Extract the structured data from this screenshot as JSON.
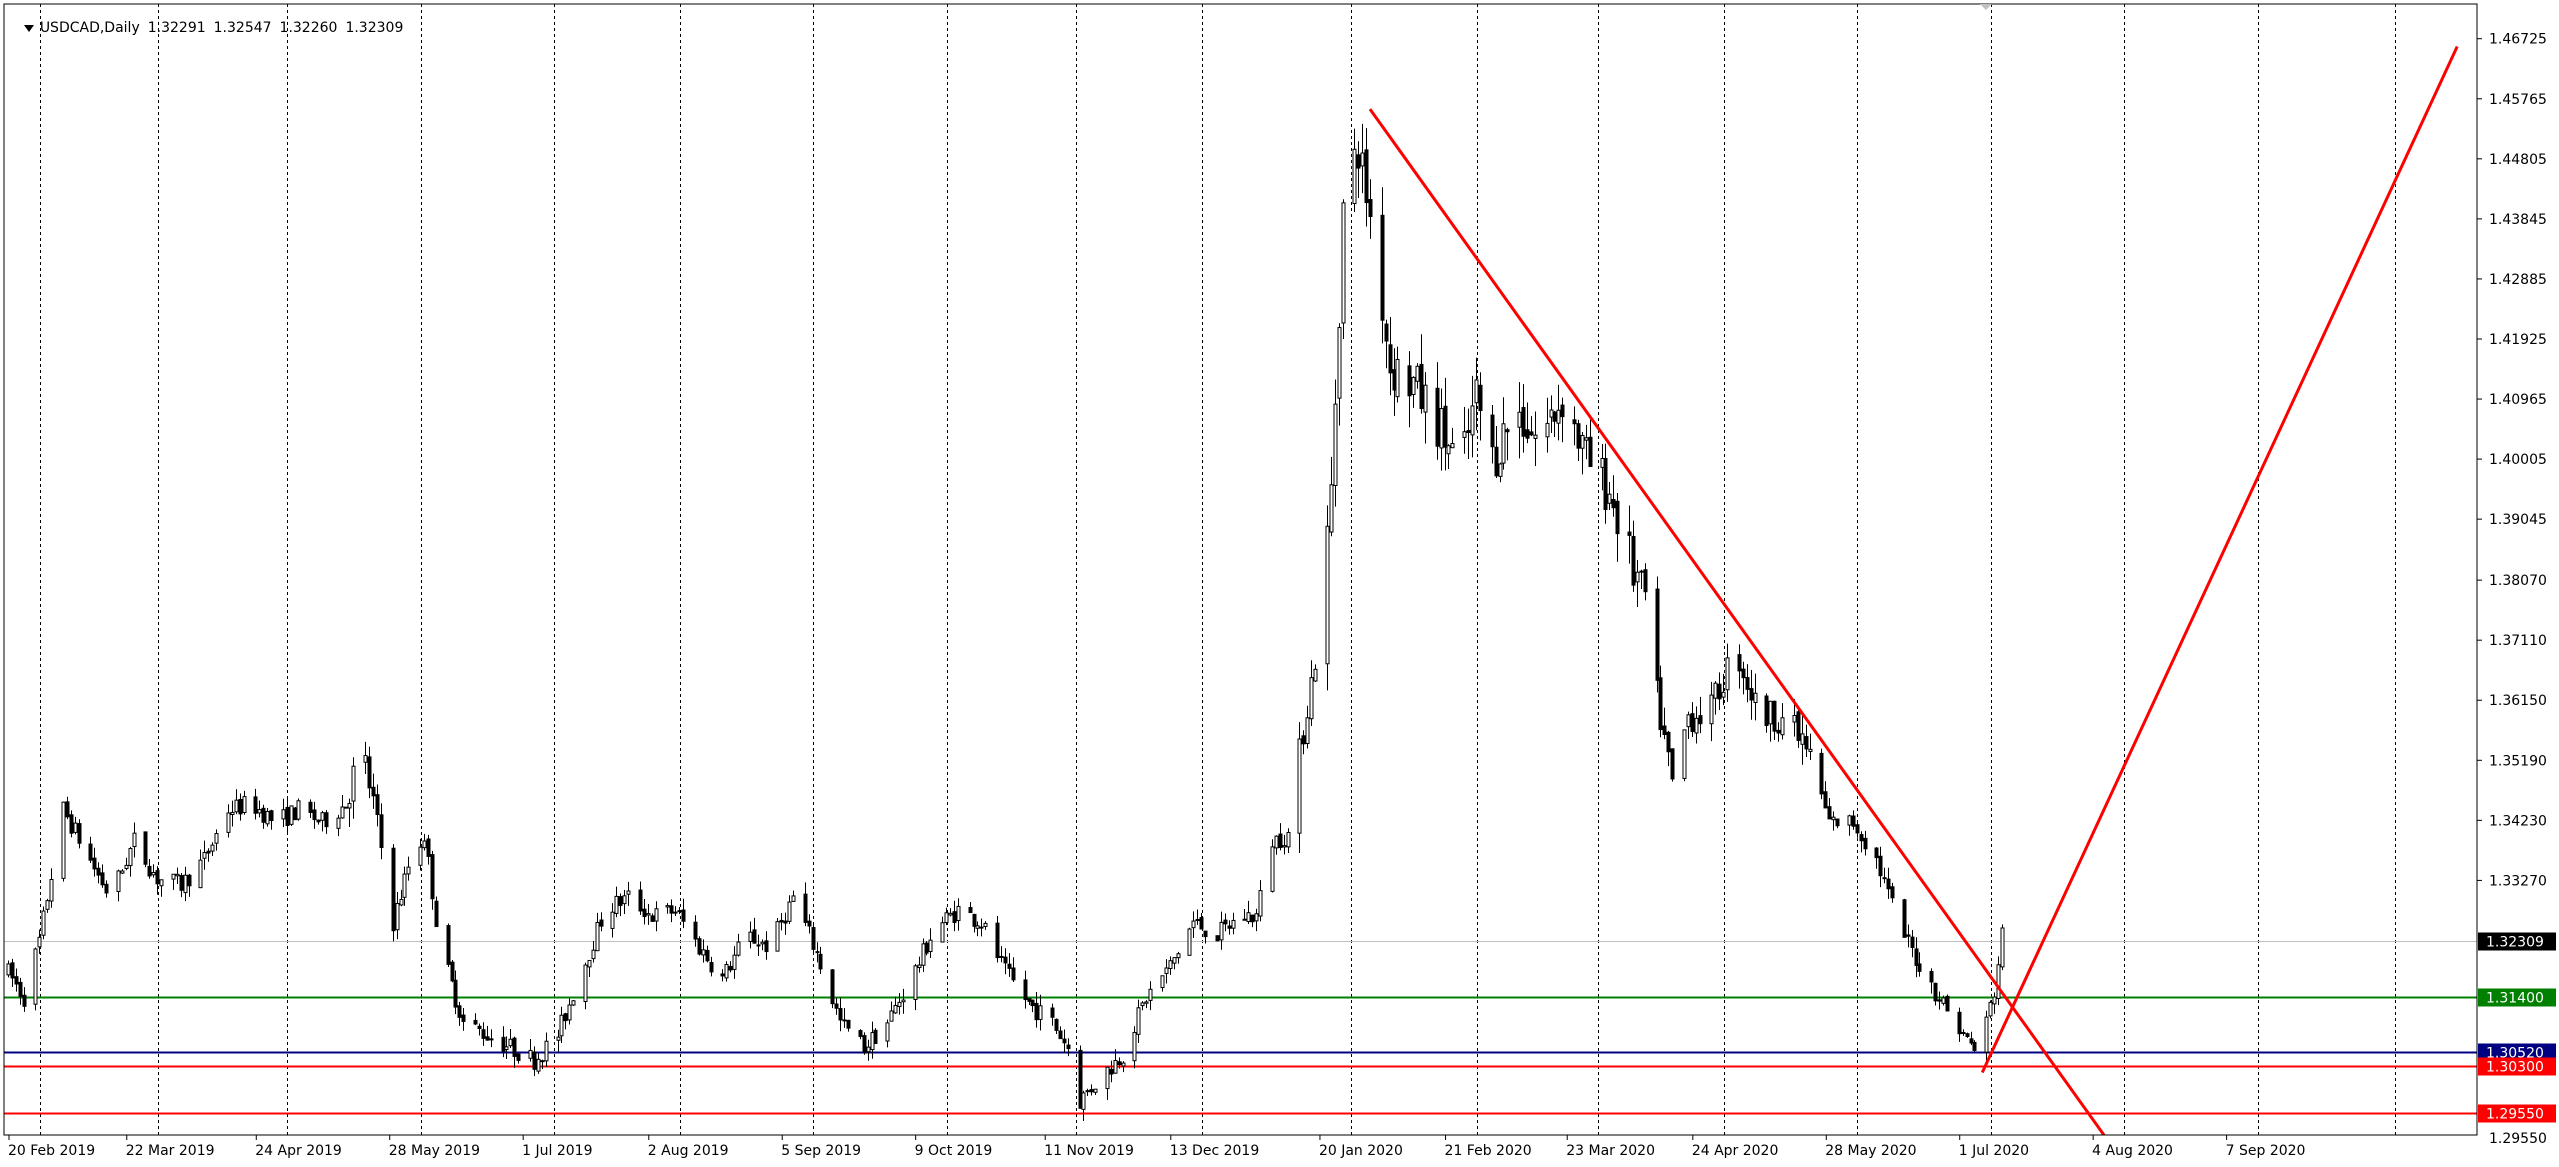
{
  "header": {
    "symbol": "USDCAD,Daily",
    "open": "1.32291",
    "high": "1.32547",
    "low": "1.32260",
    "close": "1.32309"
  },
  "colors": {
    "background": "#ffffff",
    "candle": "#000000",
    "grid": "#000000",
    "trendline": "#ff0000",
    "support_green": "#008000",
    "support_blue": "#000080",
    "support_red": "#ff0000",
    "bid_line": "#c0c0c0"
  },
  "chart_data": {
    "type": "candlestick",
    "ylim": [
      1.292,
      1.4728
    ],
    "x_range_days": [
      0,
      590
    ],
    "x_ticks": [
      {
        "label": "20 Feb 2019",
        "day": 0
      },
      {
        "label": "22 Mar 2019",
        "day": 30
      },
      {
        "label": "24 Apr 2019",
        "day": 63
      },
      {
        "label": "28 May 2019",
        "day": 97
      },
      {
        "label": "1 Jul 2019",
        "day": 131
      },
      {
        "label": "2 Aug 2019",
        "day": 163
      },
      {
        "label": "5 Sep 2019",
        "day": 197
      },
      {
        "label": "9 Oct 2019",
        "day": 231
      },
      {
        "label": "11 Nov 2019",
        "day": 264
      },
      {
        "label": "13 Dec 2019",
        "day": 296
      },
      {
        "label": "20 Jan 2020",
        "day": 334
      },
      {
        "label": "21 Feb 2020",
        "day": 366
      },
      {
        "label": "23 Mar 2020",
        "day": 397
      },
      {
        "label": "24 Apr 2020",
        "day": 429
      },
      {
        "label": "28 May 2020",
        "day": 463
      },
      {
        "label": "1 Jul 2020",
        "day": 497
      },
      {
        "label": "4 Aug 2020",
        "day": 531
      },
      {
        "label": "7 Sep 2020",
        "day": 565
      }
    ],
    "grid_days": [
      0,
      30,
      63,
      97,
      131,
      163,
      197,
      231,
      264,
      296,
      334,
      366,
      397,
      429,
      463,
      497,
      531,
      565,
      600
    ],
    "y_ticks": [
      "1.46725",
      "1.45765",
      "1.44805",
      "1.43845",
      "1.42885",
      "1.41925",
      "1.40965",
      "1.40005",
      "1.39045",
      "1.38070",
      "1.37110",
      "1.36150",
      "1.35190",
      "1.34230",
      "1.33270"
    ],
    "keypoints": [
      {
        "day": 0,
        "price": 1.318
      },
      {
        "day": 4,
        "price": 1.314
      },
      {
        "day": 8,
        "price": 1.323
      },
      {
        "day": 14,
        "price": 1.344
      },
      {
        "day": 20,
        "price": 1.337
      },
      {
        "day": 26,
        "price": 1.33
      },
      {
        "day": 32,
        "price": 1.339
      },
      {
        "day": 38,
        "price": 1.333
      },
      {
        "day": 44,
        "price": 1.332
      },
      {
        "day": 50,
        "price": 1.336
      },
      {
        "day": 56,
        "price": 1.344
      },
      {
        "day": 62,
        "price": 1.345
      },
      {
        "day": 68,
        "price": 1.342
      },
      {
        "day": 74,
        "price": 1.344
      },
      {
        "day": 80,
        "price": 1.342
      },
      {
        "day": 86,
        "price": 1.345
      },
      {
        "day": 90,
        "price": 1.354
      },
      {
        "day": 94,
        "price": 1.342
      },
      {
        "day": 98,
        "price": 1.326
      },
      {
        "day": 102,
        "price": 1.335
      },
      {
        "day": 106,
        "price": 1.34
      },
      {
        "day": 110,
        "price": 1.322
      },
      {
        "day": 116,
        "price": 1.31
      },
      {
        "day": 122,
        "price": 1.308
      },
      {
        "day": 128,
        "price": 1.306
      },
      {
        "day": 134,
        "price": 1.304
      },
      {
        "day": 140,
        "price": 1.308
      },
      {
        "day": 146,
        "price": 1.318
      },
      {
        "day": 152,
        "price": 1.328
      },
      {
        "day": 158,
        "price": 1.33
      },
      {
        "day": 164,
        "price": 1.327
      },
      {
        "day": 170,
        "price": 1.328
      },
      {
        "day": 176,
        "price": 1.322
      },
      {
        "day": 182,
        "price": 1.317
      },
      {
        "day": 188,
        "price": 1.324
      },
      {
        "day": 194,
        "price": 1.322
      },
      {
        "day": 200,
        "price": 1.33
      },
      {
        "day": 206,
        "price": 1.321
      },
      {
        "day": 212,
        "price": 1.31
      },
      {
        "day": 218,
        "price": 1.306
      },
      {
        "day": 224,
        "price": 1.31
      },
      {
        "day": 230,
        "price": 1.317
      },
      {
        "day": 236,
        "price": 1.325
      },
      {
        "day": 242,
        "price": 1.328
      },
      {
        "day": 248,
        "price": 1.326
      },
      {
        "day": 254,
        "price": 1.318
      },
      {
        "day": 260,
        "price": 1.313
      },
      {
        "day": 266,
        "price": 1.31
      },
      {
        "day": 270,
        "price": 1.306
      },
      {
        "day": 273,
        "price": 1.2975
      },
      {
        "day": 278,
        "price": 1.301
      },
      {
        "day": 284,
        "price": 1.305
      },
      {
        "day": 290,
        "price": 1.314
      },
      {
        "day": 296,
        "price": 1.319
      },
      {
        "day": 302,
        "price": 1.326
      },
      {
        "day": 308,
        "price": 1.324
      },
      {
        "day": 314,
        "price": 1.327
      },
      {
        "day": 318,
        "price": 1.327
      },
      {
        "day": 322,
        "price": 1.339
      },
      {
        "day": 326,
        "price": 1.34
      },
      {
        "day": 330,
        "price": 1.357
      },
      {
        "day": 334,
        "price": 1.372
      },
      {
        "day": 337,
        "price": 1.395
      },
      {
        "day": 340,
        "price": 1.44
      },
      {
        "day": 344,
        "price": 1.45
      },
      {
        "day": 348,
        "price": 1.435
      },
      {
        "day": 352,
        "price": 1.415
      },
      {
        "day": 358,
        "price": 1.412
      },
      {
        "day": 364,
        "price": 1.406
      },
      {
        "day": 370,
        "price": 1.398
      },
      {
        "day": 374,
        "price": 1.41
      },
      {
        "day": 378,
        "price": 1.4
      },
      {
        "day": 384,
        "price": 1.408
      },
      {
        "day": 390,
        "price": 1.403
      },
      {
        "day": 396,
        "price": 1.41
      },
      {
        "day": 402,
        "price": 1.4
      },
      {
        "day": 408,
        "price": 1.395
      },
      {
        "day": 414,
        "price": 1.382
      },
      {
        "day": 418,
        "price": 1.377
      },
      {
        "day": 420,
        "price": 1.362
      },
      {
        "day": 424,
        "price": 1.348
      },
      {
        "day": 428,
        "price": 1.359
      },
      {
        "day": 434,
        "price": 1.36
      },
      {
        "day": 440,
        "price": 1.37
      },
      {
        "day": 446,
        "price": 1.359
      },
      {
        "day": 452,
        "price": 1.359
      },
      {
        "day": 458,
        "price": 1.354
      },
      {
        "day": 464,
        "price": 1.342
      },
      {
        "day": 470,
        "price": 1.342
      },
      {
        "day": 476,
        "price": 1.336
      },
      {
        "day": 482,
        "price": 1.325
      },
      {
        "day": 488,
        "price": 1.318
      },
      {
        "day": 494,
        "price": 1.312
      },
      {
        "day": 498,
        "price": 1.308
      },
      {
        "day": 502,
        "price": 1.305
      },
      {
        "day": 506,
        "price": 1.315
      },
      {
        "day": 508,
        "price": 1.324
      }
    ],
    "trendlines": [
      {
        "name": "descending",
        "start": {
          "day": 347,
          "price": 1.456
        },
        "end": {
          "day": 534,
          "price": 1.292
        }
      },
      {
        "name": "ascending",
        "start": {
          "day": 503,
          "price": 1.302
        },
        "end": {
          "day": 624,
          "price": 1.466
        }
      }
    ],
    "horizontal_levels": [
      {
        "price": 1.314,
        "label": "1.31400",
        "color": "#008000"
      },
      {
        "price": 1.3052,
        "label": "1.30520",
        "color": "#000080"
      },
      {
        "price": 1.303,
        "label": "1.30300",
        "color": "#ff0000"
      },
      {
        "price": 1.2955,
        "label": "1.29550",
        "color": "#ff0000"
      }
    ],
    "current_price": {
      "price": 1.32309,
      "label": "1.32309"
    }
  }
}
